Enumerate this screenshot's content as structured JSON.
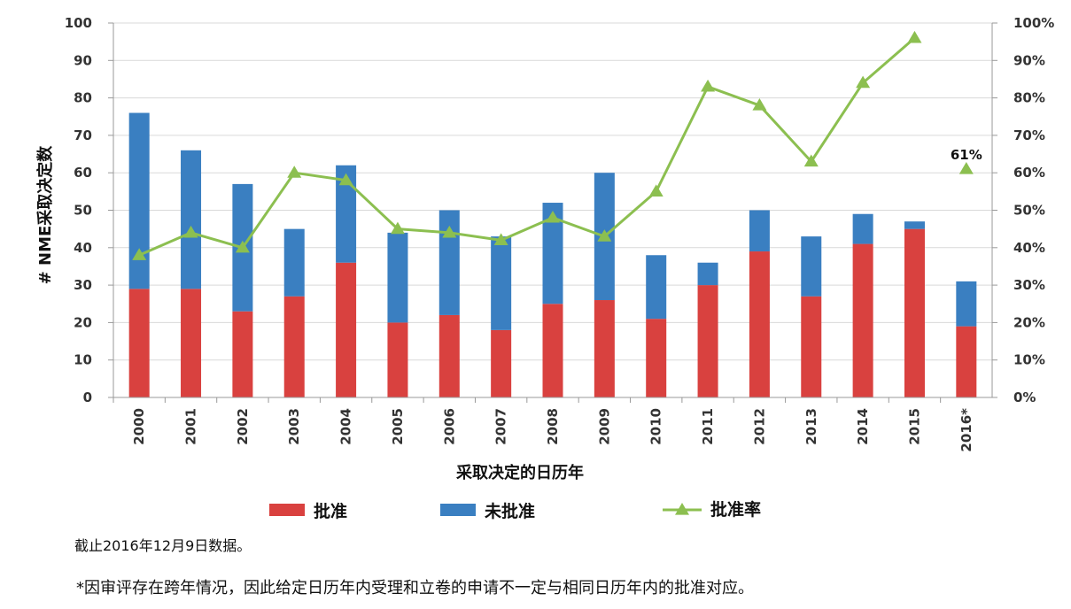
{
  "chart_data": {
    "type": "bar",
    "stacked": true,
    "categories": [
      "2000",
      "2001",
      "2002",
      "2003",
      "2004",
      "2005",
      "2006",
      "2007",
      "2008",
      "2009",
      "2010",
      "2011",
      "2012",
      "2013",
      "2014",
      "2015",
      "2016*"
    ],
    "series": [
      {
        "name": "批准",
        "type": "bar",
        "color": "#d9413f",
        "values": [
          29,
          29,
          23,
          27,
          36,
          20,
          22,
          18,
          25,
          26,
          21,
          30,
          39,
          27,
          41,
          45,
          19
        ]
      },
      {
        "name": "未批准",
        "type": "bar",
        "color": "#3a7fc1",
        "values": [
          47,
          37,
          34,
          18,
          26,
          24,
          28,
          25,
          27,
          34,
          17,
          6,
          11,
          16,
          8,
          2,
          12
        ]
      },
      {
        "name": "批准率",
        "type": "line",
        "axis": "right",
        "color": "#8cbf50",
        "values": [
          38,
          44,
          40,
          60,
          58,
          45,
          44,
          42,
          48,
          43,
          55,
          83,
          78,
          63,
          84,
          96,
          61
        ]
      }
    ],
    "ylabel": "# NME采取决定数",
    "xlabel": "采取决定的日历年",
    "ylim": [
      0,
      100
    ],
    "y2lim": [
      0,
      100
    ],
    "yticks": [
      "0",
      "10",
      "20",
      "30",
      "40",
      "50",
      "60",
      "70",
      "80",
      "90",
      "100"
    ],
    "y2ticks": [
      "0%",
      "10%",
      "20%",
      "30%",
      "40%",
      "50%",
      "60%",
      "70%",
      "80%",
      "90%",
      "100%"
    ],
    "annotation": {
      "text": "61%",
      "category": "2016*"
    },
    "grid": "horizontal",
    "legend_position": "bottom"
  },
  "notes": {
    "data_cutoff": "截止2016年12月9日数据。",
    "footnote": "*因审评存在跨年情况，因此给定日历年内受理和立卷的申请不一定与相同日历年内的批准对应。"
  }
}
